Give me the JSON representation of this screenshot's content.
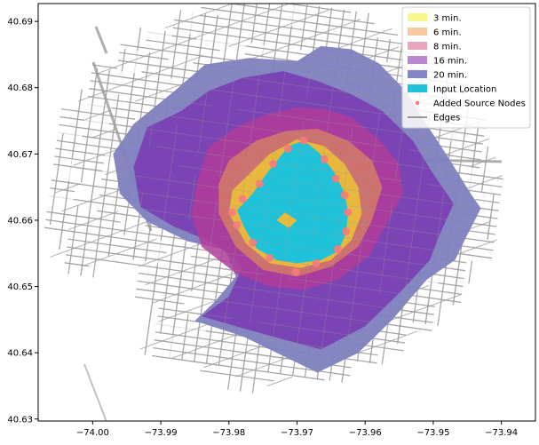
{
  "chart_data": {
    "type": "map",
    "title": "",
    "xlabel": "",
    "ylabel": "",
    "xlim": [
      -74.008,
      -73.935
    ],
    "ylim": [
      40.6297,
      40.6927
    ],
    "x_ticks": [
      -74.0,
      -73.99,
      -73.98,
      -73.97,
      -73.96,
      -73.95,
      -73.94
    ],
    "x_tick_labels": [
      "−74.00",
      "−73.99",
      "−73.98",
      "−73.97",
      "−73.96",
      "−73.95",
      "−73.94"
    ],
    "y_ticks": [
      40.63,
      40.64,
      40.65,
      40.66,
      40.67,
      40.68,
      40.69
    ],
    "y_tick_labels": [
      "40.63",
      "40.64",
      "40.65",
      "40.66",
      "40.67",
      "40.68",
      "40.69"
    ],
    "grid": false,
    "legend_position": "top-right",
    "legend": [
      {
        "label": "3 min.",
        "color": "#f8f78a",
        "kind": "patch"
      },
      {
        "label": "6 min.",
        "color": "#f8c8a0",
        "kind": "patch"
      },
      {
        "label": "8 min.",
        "color": "#e8a6bd",
        "kind": "patch"
      },
      {
        "label": "16 min.",
        "color": "#b987d1",
        "kind": "patch"
      },
      {
        "label": "20 min.",
        "color": "#8585c4",
        "kind": "patch"
      },
      {
        "label": "Input Location",
        "color": "#1fc2d8",
        "kind": "patch"
      },
      {
        "label": "Added Source Nodes",
        "color": "#f87b7b",
        "kind": "marker"
      },
      {
        "label": "Edges",
        "color": "#999999",
        "kind": "line"
      }
    ],
    "isochrones": [
      {
        "name": "20 min.",
        "color": "#7f7fc0",
        "opacity": 0.95,
        "polygon": [
          [
            -73.994,
            40.6745
          ],
          [
            -73.988,
            40.6795
          ],
          [
            -73.9835,
            40.6835
          ],
          [
            -73.977,
            40.6845
          ],
          [
            -73.97,
            40.684
          ],
          [
            -73.9665,
            40.6863
          ],
          [
            -73.962,
            40.6858
          ],
          [
            -73.958,
            40.6837
          ],
          [
            -73.954,
            40.6795
          ],
          [
            -73.951,
            40.6745
          ],
          [
            -73.9475,
            40.669
          ],
          [
            -73.9445,
            40.664
          ],
          [
            -73.943,
            40.6618
          ],
          [
            -73.945,
            40.6578
          ],
          [
            -73.9468,
            40.654
          ],
          [
            -73.951,
            40.651
          ],
          [
            -73.956,
            40.645
          ],
          [
            -73.961,
            40.64
          ],
          [
            -73.967,
            40.637
          ],
          [
            -73.972,
            40.6395
          ],
          [
            -73.978,
            40.6425
          ],
          [
            -73.985,
            40.6448
          ],
          [
            -73.982,
            40.6478
          ],
          [
            -73.979,
            40.6515
          ],
          [
            -73.9805,
            40.6555
          ],
          [
            -73.986,
            40.6568
          ],
          [
            -73.992,
            40.6598
          ],
          [
            -73.996,
            40.664
          ],
          [
            -73.997,
            40.67
          ]
        ]
      },
      {
        "name": "16 min.",
        "color": "#7a3fb4",
        "opacity": 0.92,
        "polygon": [
          [
            -73.992,
            40.674
          ],
          [
            -73.987,
            40.6765
          ],
          [
            -73.983,
            40.6795
          ],
          [
            -73.978,
            40.6815
          ],
          [
            -73.972,
            40.6825
          ],
          [
            -73.967,
            40.681
          ],
          [
            -73.962,
            40.679
          ],
          [
            -73.9575,
            40.6765
          ],
          [
            -73.953,
            40.672
          ],
          [
            -73.95,
            40.667
          ],
          [
            -73.947,
            40.6625
          ],
          [
            -73.949,
            40.658
          ],
          [
            -73.9505,
            40.654
          ],
          [
            -73.955,
            40.649
          ],
          [
            -73.96,
            40.644
          ],
          [
            -73.9665,
            40.6405
          ],
          [
            -73.972,
            40.642
          ],
          [
            -73.979,
            40.644
          ],
          [
            -73.984,
            40.6455
          ],
          [
            -73.98,
            40.6485
          ],
          [
            -73.978,
            40.653
          ],
          [
            -73.982,
            40.6565
          ],
          [
            -73.988,
            40.659
          ],
          [
            -73.993,
            40.662
          ],
          [
            -73.994,
            40.668
          ]
        ]
      },
      {
        "name": "8 min.",
        "color": "#b13c9a",
        "opacity": 0.85,
        "polygon": [
          [
            -73.983,
            40.671
          ],
          [
            -73.979,
            40.674
          ],
          [
            -73.975,
            40.6758
          ],
          [
            -73.97,
            40.677
          ],
          [
            -73.966,
            40.6768
          ],
          [
            -73.962,
            40.6755
          ],
          [
            -73.958,
            40.6722
          ],
          [
            -73.955,
            40.6685
          ],
          [
            -73.9545,
            40.664
          ],
          [
            -73.9568,
            40.6595
          ],
          [
            -73.9595,
            40.6545
          ],
          [
            -73.964,
            40.651
          ],
          [
            -73.969,
            40.6495
          ],
          [
            -73.974,
            40.65
          ],
          [
            -73.979,
            40.652
          ],
          [
            -73.984,
            40.656
          ],
          [
            -73.9855,
            40.661
          ],
          [
            -73.9845,
            40.6665
          ]
        ]
      },
      {
        "name": "6 min.",
        "color": "#d27a68",
        "opacity": 0.88,
        "polygon": [
          [
            -73.98,
            40.669
          ],
          [
            -73.976,
            40.672
          ],
          [
            -73.9715,
            40.6735
          ],
          [
            -73.967,
            40.6738
          ],
          [
            -73.9625,
            40.672
          ],
          [
            -73.959,
            40.669
          ],
          [
            -73.9575,
            40.665
          ],
          [
            -73.959,
            40.66
          ],
          [
            -73.961,
            40.656
          ],
          [
            -73.965,
            40.653
          ],
          [
            -73.97,
            40.6515
          ],
          [
            -73.975,
            40.6525
          ],
          [
            -73.979,
            40.656
          ],
          [
            -73.9815,
            40.661
          ],
          [
            -73.9815,
            40.6655
          ]
        ]
      },
      {
        "name": "3 min.",
        "color": "#e8bc3a",
        "opacity": 0.95,
        "polygon": [
          [
            -73.9775,
            40.6665
          ],
          [
            -73.974,
            40.67
          ],
          [
            -73.97,
            40.6722
          ],
          [
            -73.966,
            40.6712
          ],
          [
            -73.963,
            40.6685
          ],
          [
            -73.961,
            40.665
          ],
          [
            -73.9605,
            40.661
          ],
          [
            -73.962,
            40.657
          ],
          [
            -73.965,
            40.654
          ],
          [
            -73.9695,
            40.6528
          ],
          [
            -73.974,
            40.6535
          ],
          [
            -73.9775,
            40.6565
          ],
          [
            -73.98,
            40.661
          ],
          [
            -73.9795,
            40.6645
          ]
        ]
      },
      {
        "name": "Input Location",
        "color": "#1fc2d8",
        "opacity": 1.0,
        "polygon": [
          [
            -73.9745,
            40.667
          ],
          [
            -73.9712,
            40.6712
          ],
          [
            -73.969,
            40.672
          ],
          [
            -73.9668,
            40.6702
          ],
          [
            -73.9645,
            40.6672
          ],
          [
            -73.963,
            40.664
          ],
          [
            -73.9625,
            40.6612
          ],
          [
            -73.9628,
            40.658
          ],
          [
            -73.964,
            40.6553
          ],
          [
            -73.9665,
            40.654
          ],
          [
            -73.97,
            40.6535
          ],
          [
            -73.973,
            40.654
          ],
          [
            -73.976,
            40.6558
          ],
          [
            -73.9778,
            40.659
          ],
          [
            -73.9788,
            40.6615
          ],
          [
            -73.9765,
            40.664
          ]
        ]
      }
    ],
    "source_nodes": [
      [
        -73.969,
        40.672
      ],
      [
        -73.9713,
        40.6708
      ],
      [
        -73.966,
        40.6692
      ],
      [
        -73.9735,
        40.6685
      ],
      [
        -73.9643,
        40.6663
      ],
      [
        -73.9755,
        40.6655
      ],
      [
        -73.963,
        40.6638
      ],
      [
        -73.978,
        40.6632
      ],
      [
        -73.9625,
        40.6612
      ],
      [
        -73.9795,
        40.6612
      ],
      [
        -73.9628,
        40.6583
      ],
      [
        -73.9788,
        40.6593
      ],
      [
        -73.964,
        40.6556
      ],
      [
        -73.9765,
        40.6566
      ],
      [
        -73.9672,
        40.6535
      ],
      [
        -73.974,
        40.6543
      ],
      [
        -73.9702,
        40.6522
      ]
    ]
  }
}
